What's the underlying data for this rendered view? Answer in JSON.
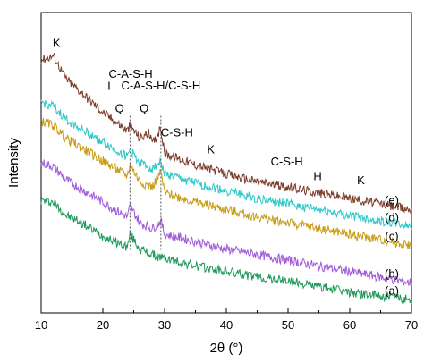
{
  "chart_data": {
    "type": "line",
    "title": "",
    "xlabel": "2θ (°)",
    "ylabel": "Intensity",
    "xlim": [
      10,
      70
    ],
    "xticks": [
      "10",
      "20",
      "30",
      "40",
      "50",
      "60",
      "70"
    ],
    "yticks_shown": false,
    "grid": false,
    "series": [
      {
        "name": "(a)",
        "color": "#1f9a5a",
        "x": [
          10,
          12,
          14,
          16,
          18,
          20,
          22,
          24,
          24.4,
          26,
          28,
          30,
          35,
          40,
          45,
          50,
          55,
          60,
          65,
          70
        ],
        "y": [
          0.55,
          0.54,
          0.47,
          0.44,
          0.4,
          0.36,
          0.33,
          0.3,
          0.37,
          0.29,
          0.26,
          0.24,
          0.2,
          0.17,
          0.14,
          0.12,
          0.09,
          0.06,
          0.04,
          0.02
        ]
      },
      {
        "name": "(b)",
        "color": "#a05ad8",
        "x": [
          10,
          12,
          14,
          16,
          18,
          20,
          22,
          24,
          24.4,
          26,
          28,
          29.4,
          30,
          35,
          40,
          45,
          50,
          55,
          60,
          65,
          70
        ],
        "y": [
          0.75,
          0.73,
          0.66,
          0.62,
          0.58,
          0.54,
          0.5,
          0.46,
          0.52,
          0.43,
          0.4,
          0.44,
          0.37,
          0.33,
          0.29,
          0.26,
          0.23,
          0.2,
          0.17,
          0.14,
          0.11
        ]
      },
      {
        "name": "(c)",
        "color": "#c89b13",
        "x": [
          10,
          12,
          14,
          16,
          18,
          20,
          22,
          24,
          24.4,
          26,
          28,
          29.4,
          30,
          35,
          40,
          45,
          50,
          55,
          60,
          65,
          70
        ],
        "y": [
          0.97,
          0.95,
          0.88,
          0.84,
          0.8,
          0.76,
          0.72,
          0.68,
          0.74,
          0.65,
          0.62,
          0.7,
          0.59,
          0.54,
          0.5,
          0.46,
          0.43,
          0.4,
          0.37,
          0.34,
          0.31
        ]
      },
      {
        "name": "(d)",
        "color": "#2ec8c8",
        "x": [
          10,
          12,
          14,
          16,
          18,
          20,
          22,
          24,
          24.4,
          26,
          28,
          29.4,
          30,
          35,
          40,
          45,
          50,
          55,
          60,
          65,
          70
        ],
        "y": [
          1.07,
          1.05,
          0.98,
          0.94,
          0.9,
          0.86,
          0.82,
          0.78,
          0.82,
          0.75,
          0.72,
          0.76,
          0.69,
          0.64,
          0.6,
          0.56,
          0.53,
          0.5,
          0.47,
          0.44,
          0.41
        ]
      },
      {
        "name": "(e)",
        "color": "#7a3b28",
        "x": [
          10,
          12,
          14,
          16,
          18,
          20,
          22,
          24,
          24.4,
          26,
          27.4,
          28,
          29.4,
          30,
          35,
          40,
          45,
          50,
          55,
          60,
          65,
          70
        ],
        "y": [
          1.3,
          1.32,
          1.2,
          1.14,
          1.08,
          1.02,
          0.97,
          0.92,
          0.95,
          0.88,
          0.91,
          0.85,
          0.93,
          0.8,
          0.74,
          0.69,
          0.65,
          0.62,
          0.59,
          0.56,
          0.53,
          0.5
        ]
      }
    ],
    "annotations": [
      {
        "text": "K",
        "x": 12.5
      },
      {
        "text": "I",
        "x": 21.0
      },
      {
        "text": "Q",
        "x": 22.7
      },
      {
        "text": "C-A-S-H",
        "x": 24.5
      },
      {
        "text": "Q",
        "x": 26.7
      },
      {
        "text": "C-A-S-H/C-S-H",
        "x": 29.4
      },
      {
        "text": "C-S-H",
        "x": 32.0
      },
      {
        "text": "K",
        "x": 37.5
      },
      {
        "text": "C-S-H",
        "x": 49.8
      },
      {
        "text": "H",
        "x": 54.8
      },
      {
        "text": "K",
        "x": 61.8
      }
    ],
    "reference_lines_x": [
      24.4,
      29.4
    ]
  }
}
